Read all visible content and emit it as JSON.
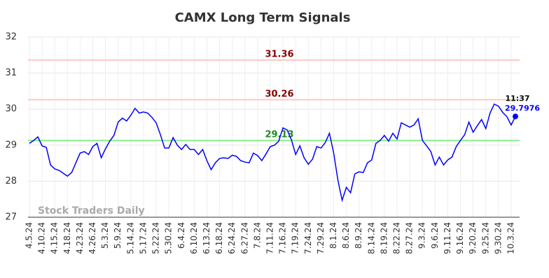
{
  "chart_data": {
    "type": "line",
    "title": "CAMX Long Term Signals",
    "categories": [
      "4.5.24",
      null,
      null,
      "4.10.24",
      null,
      null,
      "4.15.24",
      null,
      null,
      "4.18.24",
      null,
      null,
      "4.23.24",
      null,
      null,
      "4.26.24",
      null,
      null,
      "5.3.24",
      null,
      null,
      "5.9.24",
      null,
      null,
      "5.14.24",
      null,
      null,
      "5.17.24",
      null,
      null,
      "5.22.24",
      null,
      null,
      "5.30.24",
      null,
      null,
      "6.4.24",
      null,
      null,
      "6.10.24",
      null,
      null,
      "6.13.24",
      null,
      null,
      "6.18.24",
      null,
      null,
      "6.24.24",
      null,
      null,
      "6.27.24",
      null,
      null,
      "7.8.24",
      null,
      null,
      "7.11.24",
      null,
      null,
      "7.16.24",
      null,
      null,
      "7.19.24",
      null,
      null,
      "7.24.24",
      null,
      null,
      "7.29.24",
      null,
      null,
      "8.1.24",
      null,
      null,
      "8.6.24",
      null,
      null,
      "8.9.24",
      null,
      null,
      "8.14.24",
      null,
      null,
      "8.19.24",
      null,
      null,
      "8.22.24",
      null,
      null,
      "8.27.24",
      null,
      null,
      "9.3.24",
      null,
      null,
      "9.6.24",
      null,
      null,
      "9.11.24",
      null,
      null,
      "9.16.24",
      null,
      null,
      "9.20.24",
      null,
      null,
      "9.25.24",
      null,
      null,
      "9.30.24",
      null,
      null,
      "10.3.24",
      null
    ],
    "values": [
      29.05,
      29.13,
      29.23,
      28.98,
      28.94,
      28.45,
      28.34,
      28.3,
      28.22,
      28.14,
      28.24,
      28.51,
      28.78,
      28.82,
      28.74,
      28.96,
      29.05,
      28.65,
      28.9,
      29.11,
      29.27,
      29.64,
      29.75,
      29.67,
      29.83,
      30.02,
      29.89,
      29.92,
      29.89,
      29.77,
      29.62,
      29.29,
      28.92,
      28.92,
      29.21,
      29.0,
      28.88,
      29.02,
      28.88,
      28.88,
      28.74,
      28.88,
      28.57,
      28.32,
      28.51,
      28.63,
      28.65,
      28.63,
      28.72,
      28.69,
      28.57,
      28.53,
      28.51,
      28.78,
      28.71,
      28.57,
      28.76,
      28.96,
      29.0,
      29.11,
      29.48,
      29.42,
      29.15,
      28.74,
      28.98,
      28.65,
      28.47,
      28.61,
      28.96,
      28.92,
      29.07,
      29.33,
      28.78,
      28.03,
      27.47,
      27.83,
      27.68,
      28.2,
      28.26,
      28.24,
      28.51,
      28.59,
      29.05,
      29.13,
      29.27,
      29.11,
      29.33,
      29.17,
      29.62,
      29.56,
      29.5,
      29.56,
      29.73,
      29.13,
      28.98,
      28.82,
      28.45,
      28.67,
      28.45,
      28.59,
      28.67,
      28.96,
      29.13,
      29.29,
      29.64,
      29.36,
      29.54,
      29.71,
      29.46,
      29.89,
      30.14,
      30.08,
      29.91,
      29.79,
      29.56,
      29.7976
    ],
    "color": "#0000ff",
    "ylim": [
      27,
      32
    ],
    "yticks": [
      27,
      28,
      29,
      30,
      31,
      32
    ],
    "grid": true,
    "hlines": [
      {
        "value": 31.36,
        "color": "#ffc8c8",
        "label_color": "#8b0000"
      },
      {
        "value": 30.26,
        "color": "#ffc8c8",
        "label_color": "#8b0000"
      },
      {
        "value": 29.13,
        "color": "#90ee90",
        "label_color": "#228b22"
      }
    ],
    "last_time": "11:37",
    "watermark": "Stock Traders Daily"
  }
}
